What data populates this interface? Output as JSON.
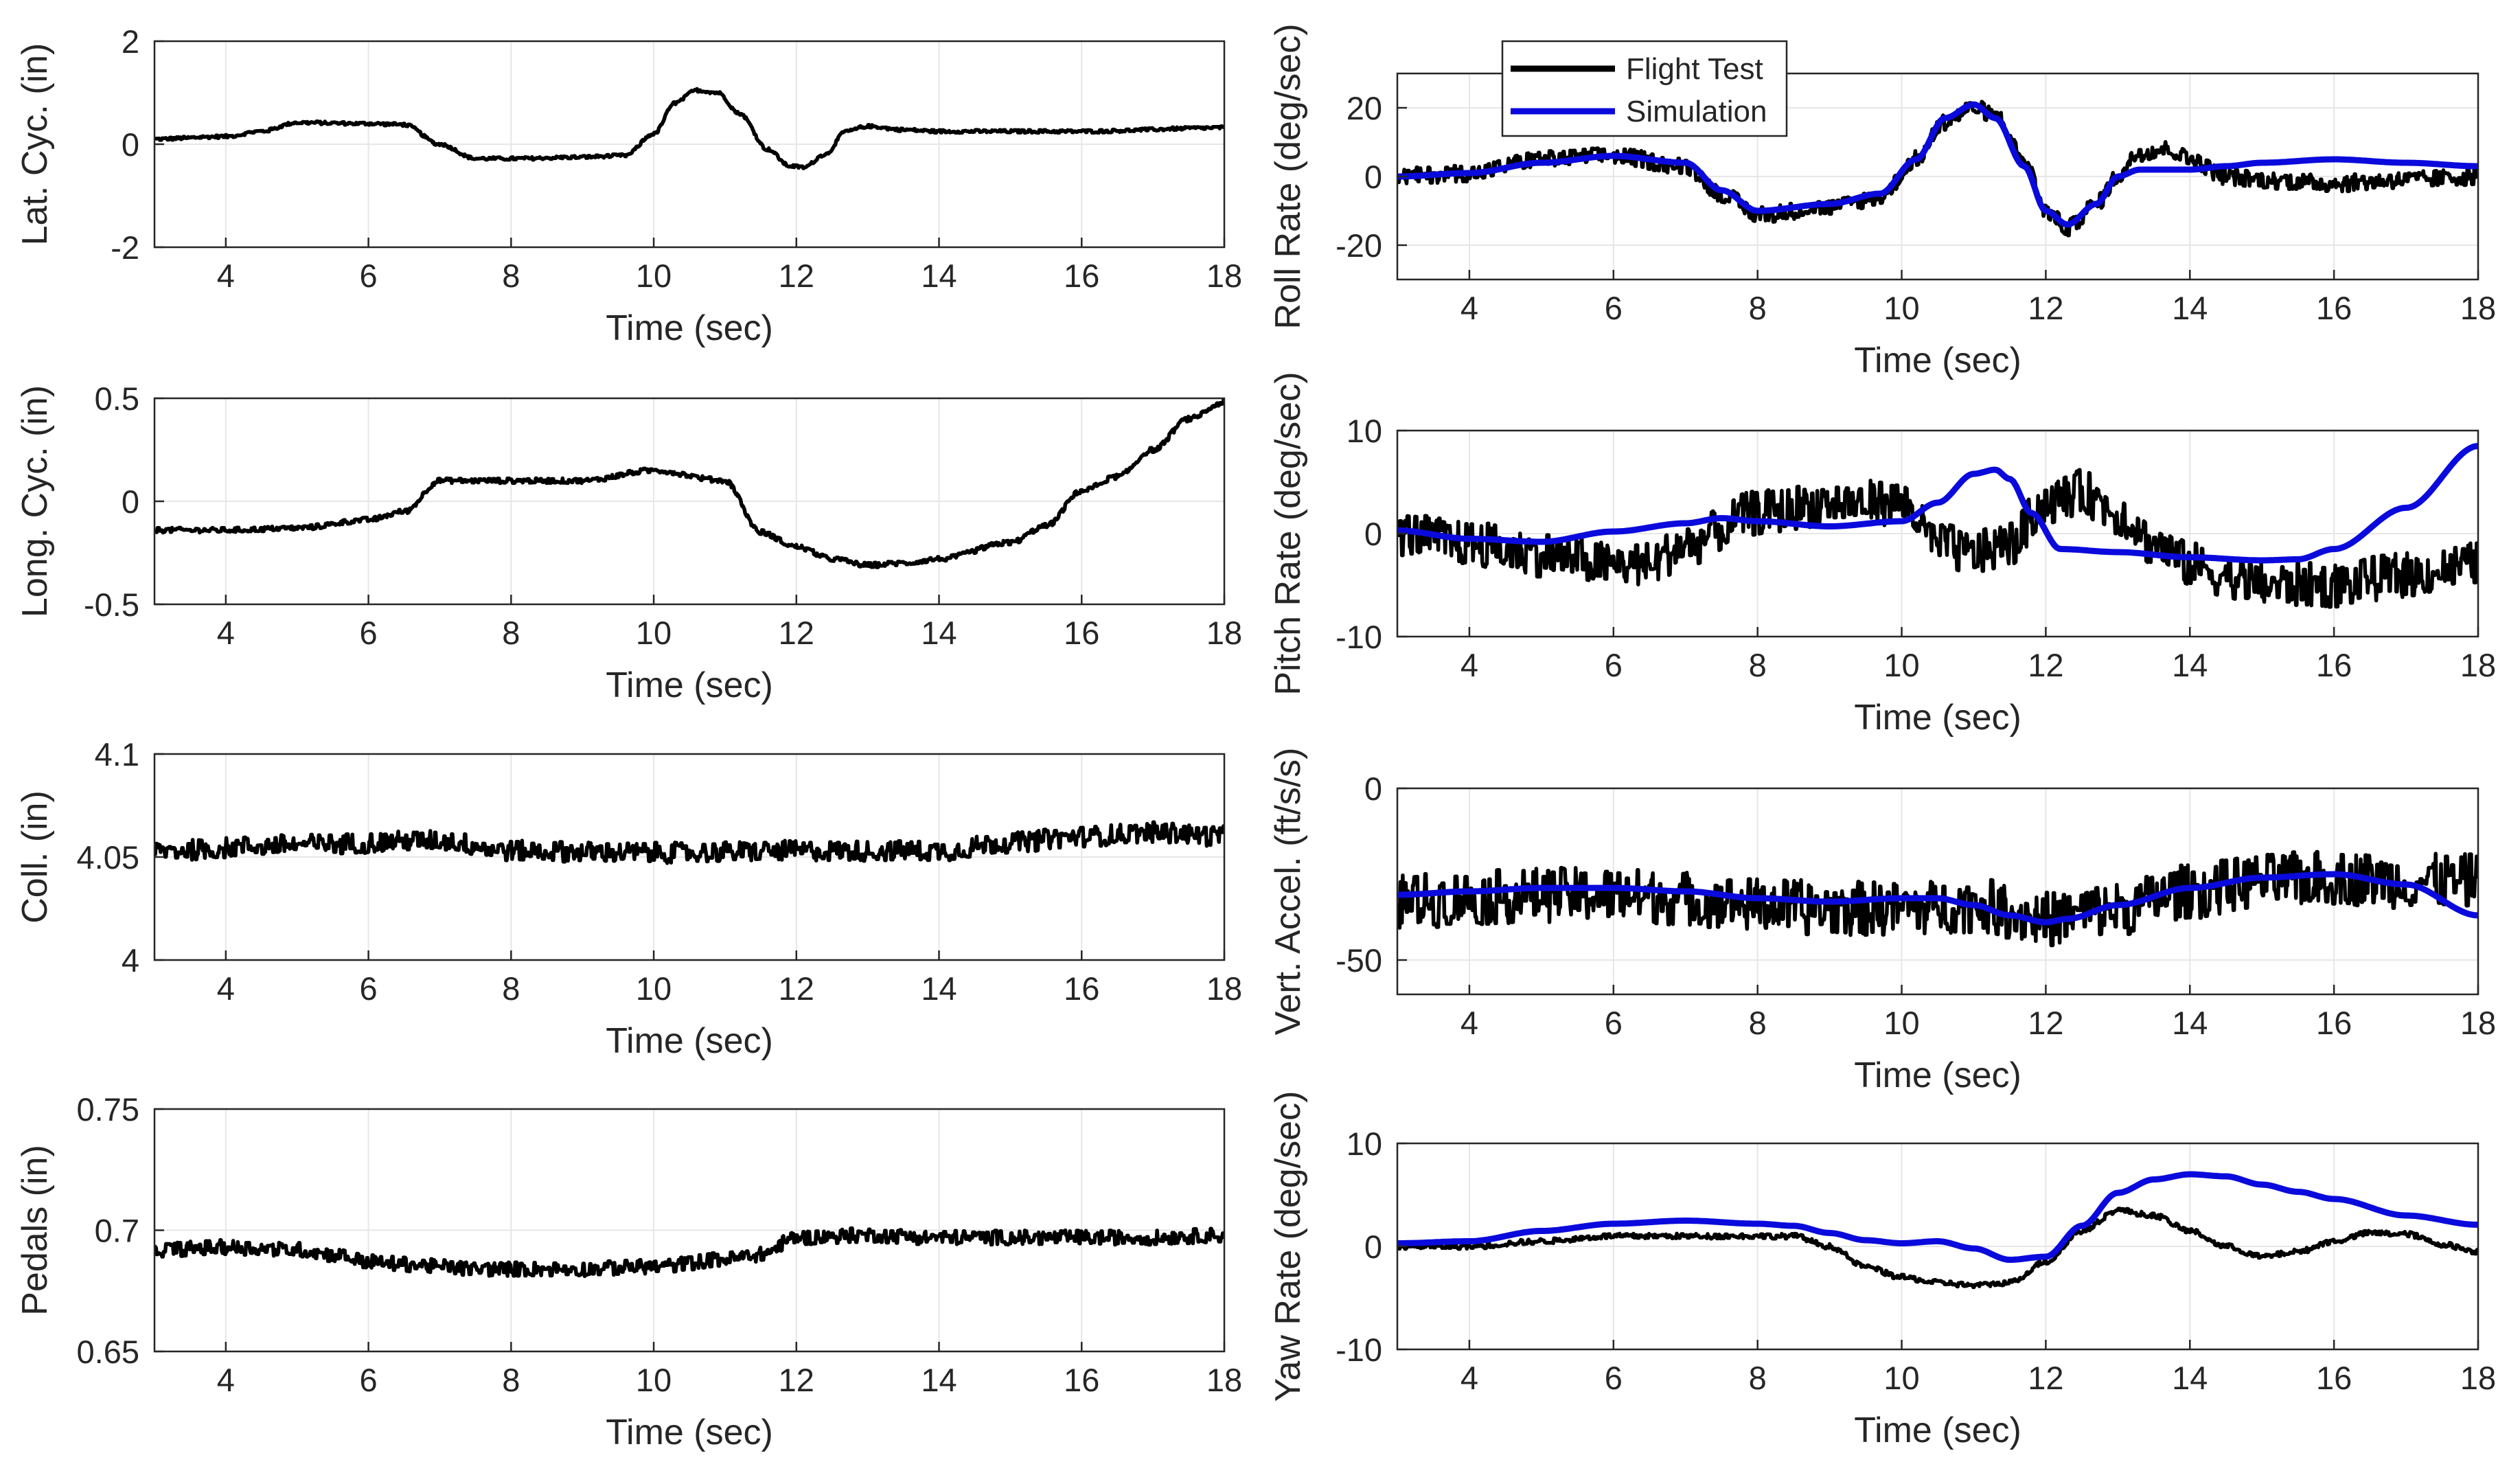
{
  "figure": {
    "legend": {
      "entries": [
        "Flight Test",
        "Simulation"
      ]
    },
    "colors": {
      "flight_test": "#000000",
      "simulation": "#0a0adc",
      "grid": "#e6e6e6",
      "axis": "#262626"
    }
  },
  "chart_data": [
    {
      "id": "lat-cyc",
      "type": "line",
      "xlabel": "Time (sec)",
      "ylabel": "Lat. Cyc. (in)",
      "xlim": [
        3,
        18
      ],
      "ylim": [
        -2,
        2
      ],
      "xticks": [
        "4",
        "6",
        "8",
        "10",
        "12",
        "14",
        "16",
        "18"
      ],
      "yticks": [
        "-2",
        "0",
        "2"
      ],
      "grid": true,
      "series": [
        {
          "key": "flight",
          "noise": 0.03,
          "x": [
            3,
            4,
            4.5,
            5,
            6,
            6.5,
            7,
            7.5,
            8,
            9,
            9.6,
            10,
            10.3,
            10.6,
            10.9,
            11.2,
            11.6,
            11.9,
            12.1,
            12.4,
            12.7,
            13,
            13.5,
            14,
            16,
            18
          ],
          "y": [
            0.1,
            0.15,
            0.25,
            0.42,
            0.4,
            0.38,
            0.0,
            -0.28,
            -0.28,
            -0.25,
            -0.22,
            0.2,
            0.8,
            1.05,
            1.0,
            0.6,
            -0.1,
            -0.42,
            -0.45,
            -0.2,
            0.25,
            0.35,
            0.28,
            0.25,
            0.25,
            0.32
          ]
        }
      ]
    },
    {
      "id": "long-cyc",
      "type": "line",
      "xlabel": "Time (sec)",
      "ylabel": "Long. Cyc. (in)",
      "xlim": [
        3,
        18
      ],
      "ylim": [
        -0.5,
        0.5
      ],
      "xticks": [
        "4",
        "6",
        "8",
        "10",
        "12",
        "14",
        "16",
        "18"
      ],
      "yticks": [
        "-0.5",
        "0",
        "0.5"
      ],
      "grid": true,
      "series": [
        {
          "key": "flight",
          "noise": 0.012,
          "x": [
            3,
            4,
            5,
            6,
            6.5,
            7,
            7.5,
            8,
            9,
            10,
            11,
            11.5,
            12,
            12.5,
            13,
            13.5,
            14,
            15,
            15.5,
            16,
            16.5,
            17,
            17.5,
            18
          ],
          "y": [
            -0.14,
            -0.14,
            -0.13,
            -0.09,
            -0.05,
            0.1,
            0.1,
            0.1,
            0.1,
            0.15,
            0.1,
            -0.15,
            -0.22,
            -0.28,
            -0.31,
            -0.3,
            -0.28,
            -0.2,
            -0.12,
            0.05,
            0.12,
            0.25,
            0.4,
            0.48
          ]
        }
      ]
    },
    {
      "id": "coll",
      "type": "line",
      "xlabel": "Time (sec)",
      "ylabel": "Coll. (in)",
      "xlim": [
        3,
        18
      ],
      "ylim": [
        4,
        4.1
      ],
      "xticks": [
        "4",
        "6",
        "8",
        "10",
        "12",
        "14",
        "16",
        "18"
      ],
      "yticks": [
        "4",
        "4.05",
        "4.1"
      ],
      "grid": true,
      "series": [
        {
          "key": "flight",
          "noise": 0.005,
          "x": [
            3,
            5,
            7,
            8,
            10,
            12,
            14,
            15,
            16,
            17,
            18
          ],
          "y": [
            4.053,
            4.056,
            4.058,
            4.053,
            4.052,
            4.053,
            4.053,
            4.057,
            4.06,
            4.062,
            4.06
          ]
        }
      ]
    },
    {
      "id": "pedals",
      "type": "line",
      "xlabel": "Time (sec)",
      "ylabel": "Pedals (in)",
      "xlim": [
        3,
        18
      ],
      "ylim": [
        0.65,
        0.75
      ],
      "xticks": [
        "4",
        "6",
        "8",
        "10",
        "12",
        "14",
        "16",
        "18"
      ],
      "yticks": [
        "0.65",
        "0.7",
        "0.75"
      ],
      "grid": true,
      "series": [
        {
          "key": "flight",
          "noise": 0.003,
          "x": [
            3,
            4,
            5,
            5.5,
            6,
            6.5,
            7,
            7.5,
            8,
            9,
            10,
            11,
            11.5,
            12,
            13,
            14,
            15,
            16,
            17,
            18
          ],
          "y": [
            0.692,
            0.693,
            0.692,
            0.69,
            0.687,
            0.686,
            0.685,
            0.684,
            0.684,
            0.684,
            0.685,
            0.688,
            0.69,
            0.697,
            0.698,
            0.697,
            0.697,
            0.697,
            0.697,
            0.698
          ]
        }
      ]
    },
    {
      "id": "roll-rate",
      "type": "line",
      "xlabel": "Time (sec)",
      "ylabel": "Roll Rate (deg/sec)",
      "xlim": [
        3,
        18
      ],
      "ylim": [
        -30,
        30
      ],
      "xticks": [
        "4",
        "6",
        "8",
        "10",
        "12",
        "14",
        "16",
        "18"
      ],
      "yticks": [
        "-20",
        "0",
        "20"
      ],
      "grid": true,
      "series": [
        {
          "key": "flight",
          "noise": 2.5,
          "x": [
            3,
            4,
            5,
            6,
            7,
            7.5,
            8,
            9,
            9.7,
            10.2,
            10.6,
            11,
            11.3,
            11.7,
            12,
            12.3,
            12.7,
            13,
            13.3,
            13.7,
            14,
            14.5,
            15,
            16,
            17,
            18
          ],
          "y": [
            0,
            1,
            5,
            6,
            3,
            -5,
            -11,
            -9,
            -6,
            5,
            16,
            20,
            18,
            5,
            -10,
            -15,
            -8,
            0,
            7,
            8,
            5,
            0,
            -1,
            -2,
            -1,
            0
          ]
        },
        {
          "key": "sim",
          "noise": 0,
          "x": [
            3,
            4,
            5,
            6,
            7,
            7.5,
            8,
            9,
            9.7,
            10.2,
            10.6,
            11,
            11.3,
            11.7,
            12,
            12.3,
            12.7,
            13,
            13.3,
            13.7,
            14,
            14.5,
            15,
            16,
            17,
            18
          ],
          "y": [
            0,
            1,
            4,
            6,
            4,
            -4,
            -10,
            -8,
            -5,
            5,
            17,
            21,
            17,
            3,
            -10,
            -14,
            -8,
            0,
            2,
            2,
            2,
            3,
            4,
            5,
            4,
            3
          ]
        }
      ]
    },
    {
      "id": "pitch-rate",
      "type": "line",
      "xlabel": "Time (sec)",
      "ylabel": "Pitch Rate (deg/sec)",
      "xlim": [
        3,
        18
      ],
      "ylim": [
        -10,
        10
      ],
      "xticks": [
        "4",
        "6",
        "8",
        "10",
        "12",
        "14",
        "16",
        "18"
      ],
      "yticks": [
        "-10",
        "0",
        "10"
      ],
      "grid": true,
      "series": [
        {
          "key": "flight",
          "noise": 2.2,
          "x": [
            3,
            4,
            5,
            6,
            6.5,
            7,
            8,
            9,
            10,
            10.5,
            11,
            11.5,
            12,
            12.5,
            13,
            13.5,
            14,
            14.5,
            15,
            16,
            17,
            18
          ],
          "y": [
            0,
            -1,
            -2,
            -3,
            -3,
            -1,
            2,
            3,
            3,
            -1,
            -2,
            -1,
            3,
            4,
            2,
            -1,
            -3,
            -4,
            -5,
            -5,
            -4,
            -3
          ]
        },
        {
          "key": "sim",
          "noise": 0,
          "x": [
            3,
            4,
            5,
            6,
            7,
            7.5,
            8,
            9,
            10,
            10.5,
            11,
            11.3,
            11.5,
            11.8,
            12.2,
            13,
            14,
            15,
            15.5,
            16,
            17,
            18
          ],
          "y": [
            0.3,
            -0.5,
            -0.8,
            0.2,
            1,
            1.5,
            1.2,
            0.7,
            1.2,
            3,
            5.8,
            6.2,
            5.3,
            2,
            -1.5,
            -1.8,
            -2.3,
            -2.6,
            -2.5,
            -1.5,
            2.5,
            8.5
          ]
        }
      ]
    },
    {
      "id": "vert-accel",
      "type": "line",
      "xlabel": "Time (sec)",
      "ylabel": "Vert. Accel. (ft/s/s)",
      "xlim": [
        3,
        18
      ],
      "ylim": [
        -60,
        0
      ],
      "xticks": [
        "4",
        "6",
        "8",
        "10",
        "12",
        "14",
        "16",
        "18"
      ],
      "yticks": [
        "-50",
        "0"
      ],
      "grid": true,
      "series": [
        {
          "key": "flight",
          "noise": 8,
          "x": [
            3,
            4,
            5,
            6,
            7,
            8,
            9,
            10,
            11,
            12,
            13,
            14,
            15,
            16,
            17,
            18
          ],
          "y": [
            -33,
            -32,
            -31,
            -31,
            -32,
            -34,
            -35,
            -35,
            -34,
            -38,
            -35,
            -30,
            -27,
            -26,
            -27,
            -27
          ]
        },
        {
          "key": "sim",
          "noise": 0,
          "x": [
            3,
            4,
            5,
            6,
            7,
            8,
            9,
            10,
            10.5,
            11,
            11.5,
            12,
            12.3,
            13,
            14,
            15,
            16,
            17,
            18
          ],
          "y": [
            -31,
            -30,
            -29,
            -29,
            -30,
            -32,
            -33,
            -32,
            -32,
            -34,
            -37,
            -39,
            -38,
            -34,
            -29,
            -26,
            -25,
            -28,
            -37
          ]
        }
      ]
    },
    {
      "id": "yaw-rate",
      "type": "line",
      "xlabel": "Time (sec)",
      "ylabel": "Yaw Rate (deg/sec)",
      "xlim": [
        3,
        18
      ],
      "ylim": [
        -10,
        10
      ],
      "xticks": [
        "4",
        "6",
        "8",
        "10",
        "12",
        "14",
        "16",
        "18"
      ],
      "yticks": [
        "-10",
        "0",
        "10"
      ],
      "grid": true,
      "series": [
        {
          "key": "flight",
          "noise": 0.25,
          "x": [
            3,
            4,
            5,
            6,
            7,
            8,
            8.5,
            9,
            9.5,
            10,
            10.5,
            11,
            11.5,
            12,
            12.5,
            13,
            13.5,
            14,
            14.5,
            15,
            15.5,
            16,
            16.5,
            17,
            17.5,
            18
          ],
          "y": [
            0,
            0,
            0.5,
            1,
            1,
            1,
            1,
            0,
            -2,
            -3,
            -3.5,
            -3.8,
            -3.5,
            -1.5,
            1.5,
            3.5,
            3,
            1.5,
            0,
            -1,
            -0.5,
            0.5,
            1.3,
            1.2,
            0.2,
            -0.5
          ]
        },
        {
          "key": "sim",
          "noise": 0,
          "x": [
            3,
            4,
            5,
            6,
            7,
            8,
            8.5,
            9,
            9.5,
            10,
            10.5,
            11,
            11.5,
            12,
            12.5,
            13,
            13.5,
            14,
            14.5,
            15,
            15.5,
            16,
            17,
            18
          ],
          "y": [
            0.3,
            0.5,
            1.5,
            2.2,
            2.5,
            2.2,
            2,
            1.3,
            0.6,
            0.3,
            0.5,
            -0.2,
            -1.3,
            -1,
            2,
            5.2,
            6.5,
            7,
            6.8,
            6,
            5.3,
            4.6,
            3,
            2.1
          ]
        }
      ]
    }
  ]
}
